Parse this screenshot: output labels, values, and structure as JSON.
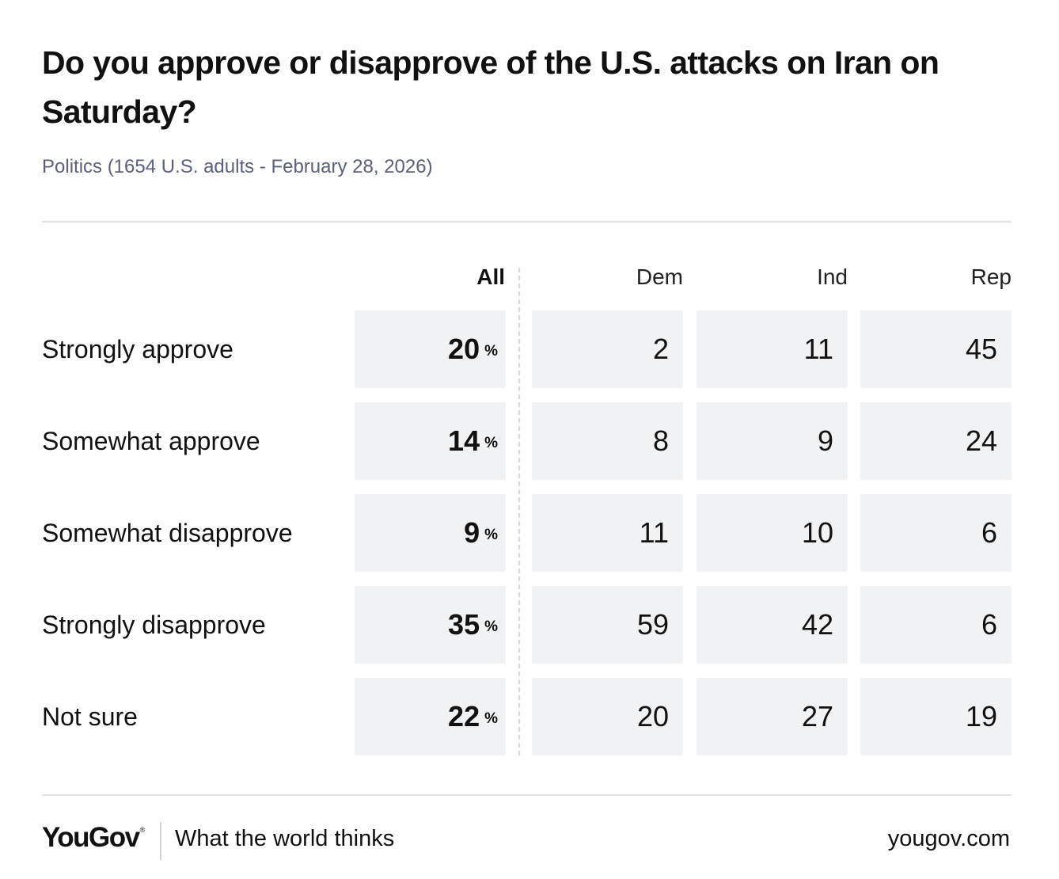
{
  "title": "Do you approve or disapprove of the U.S. attacks on Iran on Saturday?",
  "subtitle": "Politics (1654 U.S. adults - February 28, 2026)",
  "colors": {
    "cell_bg": "#f1f2f3",
    "subtitle": "#5a6178",
    "rule": "#e4e4e4"
  },
  "chart_data": {
    "type": "table",
    "title": "Do you approve or disapprove of the U.S. attacks on Iran on Saturday?",
    "columns": [
      "All",
      "Dem",
      "Ind",
      "Rep"
    ],
    "unit": "%",
    "rows": [
      {
        "label": "Strongly approve",
        "values": [
          "20",
          "2",
          "11",
          "45"
        ]
      },
      {
        "label": "Somewhat approve",
        "values": [
          "14",
          "8",
          "9",
          "24"
        ]
      },
      {
        "label": "Somewhat disapprove",
        "values": [
          "9",
          "11",
          "10",
          "6"
        ]
      },
      {
        "label": "Strongly disapprove",
        "values": [
          "35",
          "59",
          "42",
          "6"
        ]
      },
      {
        "label": "Not sure",
        "values": [
          "22",
          "20",
          "27",
          "19"
        ]
      }
    ]
  },
  "footer": {
    "logo": "YouGov",
    "logo_mark": "®",
    "tagline": "What the world thinks",
    "site": "yougov.com"
  }
}
